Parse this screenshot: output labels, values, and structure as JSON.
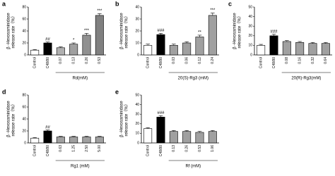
{
  "chart_data": [
    {
      "type": "bar",
      "panel": "a",
      "ylabel": [
        "β -Hexosaminidase",
        "release rate（%）"
      ],
      "group_label": "Rd(mM)",
      "categories": [
        "Control",
        "C48/80",
        "0.07",
        "0.13",
        "0.26",
        "0.53"
      ],
      "values": [
        8,
        20,
        12,
        18,
        33,
        66
      ],
      "errors": [
        1,
        1.5,
        1.5,
        2,
        3,
        3
      ],
      "colors": [
        "#ffffff",
        "#000000",
        "#b0b0b0",
        "#a0a0a0",
        "#909090",
        "#808080"
      ],
      "annotations": [
        null,
        "##",
        null,
        "*",
        "***",
        "***"
      ],
      "ylim": [
        0,
        80
      ],
      "yticks": [
        0,
        20,
        40,
        60,
        80
      ]
    },
    {
      "type": "bar",
      "panel": "b",
      "ylabel": [
        "β -Hexosaminidase",
        "release rate（%）"
      ],
      "group_label": "20(S)-Rg3 (mM)",
      "categories": [
        "Control",
        "C48/80",
        "0.03",
        "0.06",
        "0.12",
        "0.24"
      ],
      "values": [
        8,
        17,
        8,
        10,
        15,
        33
      ],
      "errors": [
        1,
        1,
        1,
        1,
        1.5,
        2
      ],
      "colors": [
        "#ffffff",
        "#000000",
        "#a0a0a0",
        "#a0a0a0",
        "#a0a0a0",
        "#a0a0a0"
      ],
      "annotations": [
        null,
        "###",
        null,
        null,
        "**",
        "***"
      ],
      "ylim": [
        0,
        40
      ],
      "yticks": [
        0,
        10,
        20,
        30,
        40
      ]
    },
    {
      "type": "bar",
      "panel": "c",
      "ylabel": [
        "β -Hexosaminidase",
        "release rate（%）"
      ],
      "group_label": "20(R)-Rg3(mM)",
      "categories": [
        "Control",
        "C48/80",
        "0.08",
        "0.16",
        "0.32",
        "0.64"
      ],
      "values": [
        10,
        20,
        14,
        13,
        12,
        12
      ],
      "errors": [
        1,
        1.5,
        1,
        1,
        1,
        1
      ],
      "colors": [
        "#ffffff",
        "#000000",
        "#a0a0a0",
        "#a0a0a0",
        "#a0a0a0",
        "#a0a0a0"
      ],
      "annotations": [
        null,
        "###",
        null,
        null,
        null,
        null
      ],
      "ylim": [
        0,
        50
      ],
      "yticks": [
        0,
        10,
        20,
        30,
        40,
        50
      ]
    },
    {
      "type": "bar",
      "panel": "d",
      "ylabel": [
        "β -Hexosaminidase",
        "release rate（%）"
      ],
      "group_label": "Rg1 (mM)",
      "categories": [
        "Control",
        "C48/80",
        "0.63",
        "1.25",
        "2.50",
        "5.00"
      ],
      "values": [
        8,
        20,
        10,
        10,
        10,
        10
      ],
      "errors": [
        1,
        1.5,
        1,
        1,
        1,
        1
      ],
      "colors": [
        "#ffffff",
        "#000000",
        "#a0a0a0",
        "#a0a0a0",
        "#a0a0a0",
        "#a0a0a0"
      ],
      "annotations": [
        null,
        "##",
        null,
        null,
        null,
        null
      ],
      "ylim": [
        0,
        80
      ],
      "yticks": [
        0,
        20,
        40,
        60,
        80
      ]
    },
    {
      "type": "bar",
      "panel": "e",
      "ylabel": [
        "β -Hexosaminidase",
        "release rate（%）"
      ],
      "group_label": "Rf (mM)",
      "categories": [
        "Control",
        "C48/80",
        "0.13",
        "0.26",
        "0.53",
        "1.06"
      ],
      "values": [
        15,
        27,
        12,
        12,
        11,
        12
      ],
      "errors": [
        1,
        1.5,
        1,
        1,
        1,
        1
      ],
      "colors": [
        "#ffffff",
        "#000000",
        "#a0a0a0",
        "#a0a0a0",
        "#a0a0a0",
        "#a0a0a0"
      ],
      "annotations": [
        null,
        "###",
        null,
        null,
        null,
        null
      ],
      "ylim": [
        0,
        50
      ],
      "yticks": [
        0,
        10,
        20,
        30,
        40,
        50
      ]
    }
  ]
}
